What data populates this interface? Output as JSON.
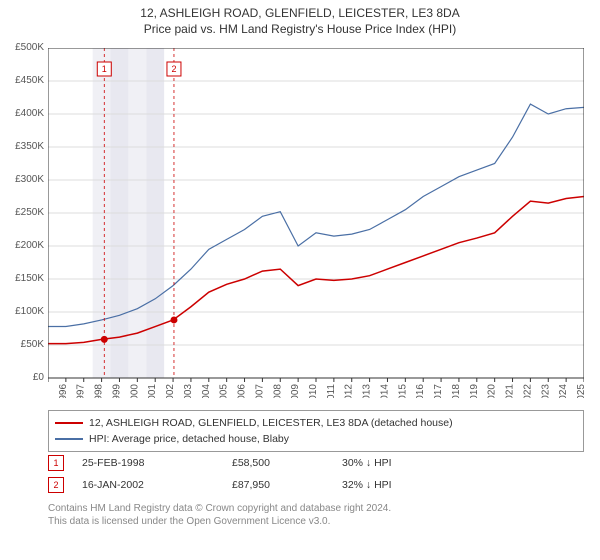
{
  "title": {
    "main": "12, ASHLEIGH ROAD, GLENFIELD, LEICESTER, LE3 8DA",
    "sub": "Price paid vs. HM Land Registry's House Price Index (HPI)"
  },
  "chart": {
    "type": "line",
    "background_color": "#ffffff",
    "grid_color": "#dddddd",
    "axis_color": "#333333",
    "label_color": "#555555",
    "label_fontsize": 10,
    "ylim": [
      0,
      500000
    ],
    "ytick_step": 50000,
    "yticks": [
      "£0",
      "£50K",
      "£100K",
      "£150K",
      "£200K",
      "£250K",
      "£300K",
      "£350K",
      "£400K",
      "£450K",
      "£500K"
    ],
    "xlim": [
      1995,
      2025
    ],
    "xticks": [
      1995,
      1996,
      1997,
      1998,
      1999,
      2000,
      2001,
      2002,
      2003,
      2004,
      2005,
      2006,
      2007,
      2008,
      2009,
      2010,
      2011,
      2012,
      2013,
      2014,
      2015,
      2016,
      2017,
      2018,
      2019,
      2020,
      2021,
      2022,
      2023,
      2024,
      2025
    ],
    "shaded_bands": [
      {
        "from": 1997.5,
        "to": 1998.5,
        "color": "#f0f0f5"
      },
      {
        "from": 1998.5,
        "to": 1999.5,
        "color": "#e8e8f0"
      },
      {
        "from": 1999.5,
        "to": 2000.5,
        "color": "#f0f0f5"
      },
      {
        "from": 2000.5,
        "to": 2001.5,
        "color": "#e8e8f0"
      }
    ],
    "series": [
      {
        "name": "12, ASHLEIGH ROAD, GLENFIELD, LEICESTER, LE3 8DA (detached house)",
        "color": "#cc0000",
        "line_width": 1.5,
        "data": [
          [
            1995,
            52000
          ],
          [
            1996,
            52000
          ],
          [
            1997,
            54000
          ],
          [
            1998,
            58500
          ],
          [
            1999,
            62000
          ],
          [
            2000,
            68000
          ],
          [
            2001,
            78000
          ],
          [
            2002,
            87950
          ],
          [
            2003,
            108000
          ],
          [
            2004,
            130000
          ],
          [
            2005,
            142000
          ],
          [
            2006,
            150000
          ],
          [
            2007,
            162000
          ],
          [
            2008,
            165000
          ],
          [
            2009,
            140000
          ],
          [
            2010,
            150000
          ],
          [
            2011,
            148000
          ],
          [
            2012,
            150000
          ],
          [
            2013,
            155000
          ],
          [
            2014,
            165000
          ],
          [
            2015,
            175000
          ],
          [
            2016,
            185000
          ],
          [
            2017,
            195000
          ],
          [
            2018,
            205000
          ],
          [
            2019,
            212000
          ],
          [
            2020,
            220000
          ],
          [
            2021,
            245000
          ],
          [
            2022,
            268000
          ],
          [
            2023,
            265000
          ],
          [
            2024,
            272000
          ],
          [
            2025,
            275000
          ]
        ]
      },
      {
        "name": "HPI: Average price, detached house, Blaby",
        "color": "#4a6fa5",
        "line_width": 1.2,
        "data": [
          [
            1995,
            78000
          ],
          [
            1996,
            78000
          ],
          [
            1997,
            82000
          ],
          [
            1998,
            88000
          ],
          [
            1999,
            95000
          ],
          [
            2000,
            105000
          ],
          [
            2001,
            120000
          ],
          [
            2002,
            140000
          ],
          [
            2003,
            165000
          ],
          [
            2004,
            195000
          ],
          [
            2005,
            210000
          ],
          [
            2006,
            225000
          ],
          [
            2007,
            245000
          ],
          [
            2008,
            252000
          ],
          [
            2009,
            200000
          ],
          [
            2010,
            220000
          ],
          [
            2011,
            215000
          ],
          [
            2012,
            218000
          ],
          [
            2013,
            225000
          ],
          [
            2014,
            240000
          ],
          [
            2015,
            255000
          ],
          [
            2016,
            275000
          ],
          [
            2017,
            290000
          ],
          [
            2018,
            305000
          ],
          [
            2019,
            315000
          ],
          [
            2020,
            325000
          ],
          [
            2021,
            365000
          ],
          [
            2022,
            415000
          ],
          [
            2023,
            400000
          ],
          [
            2024,
            408000
          ],
          [
            2025,
            410000
          ]
        ]
      }
    ],
    "event_markers": [
      {
        "label": "1",
        "x": 1998.15,
        "color": "#cc0000"
      },
      {
        "label": "2",
        "x": 2002.05,
        "color": "#cc0000"
      }
    ],
    "sale_points": [
      {
        "x": 1998.15,
        "y": 58500,
        "color": "#cc0000"
      },
      {
        "x": 2002.05,
        "y": 87950,
        "color": "#cc0000"
      }
    ]
  },
  "legend": {
    "items": [
      {
        "color": "#cc0000",
        "label": "12, ASHLEIGH ROAD, GLENFIELD, LEICESTER, LE3 8DA (detached house)"
      },
      {
        "color": "#4a6fa5",
        "label": "HPI: Average price, detached house, Blaby"
      }
    ]
  },
  "events": [
    {
      "num": "1",
      "color": "#cc0000",
      "date": "25-FEB-1998",
      "price": "£58,500",
      "diff": "30% ↓ HPI"
    },
    {
      "num": "2",
      "color": "#cc0000",
      "date": "16-JAN-2002",
      "price": "£87,950",
      "diff": "32% ↓ HPI"
    }
  ],
  "copyright": {
    "line1": "Contains HM Land Registry data © Crown copyright and database right 2024.",
    "line2": "This data is licensed under the Open Government Licence v3.0."
  }
}
